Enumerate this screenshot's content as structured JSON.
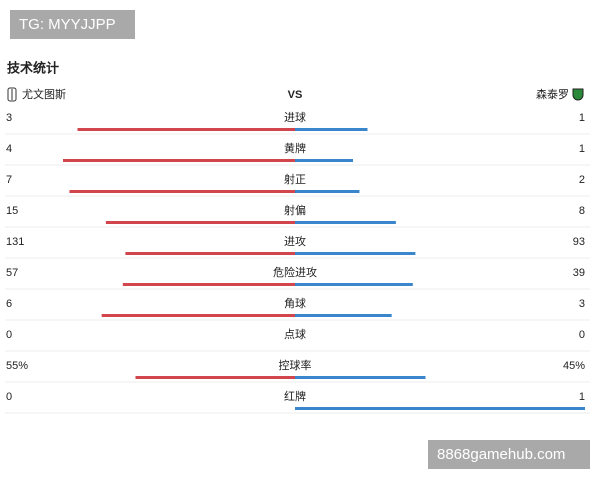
{
  "watermark_top": "TG: MYYJJPP",
  "watermark_bottom": "8868gamehub.com",
  "title": "技术统计",
  "home_team": "尤文图斯",
  "vs": "VS",
  "away_team": "森泰罗",
  "home_color": "#d2454d",
  "away_color": "#3a86cc",
  "rows": [
    {
      "name": "进球",
      "home": 3,
      "away": 1
    },
    {
      "name": "黄牌",
      "home": 4,
      "away": 1
    },
    {
      "name": "射正",
      "home": 7,
      "away": 2
    },
    {
      "name": "射偏",
      "home": 15,
      "away": 8
    },
    {
      "name": "进攻",
      "home": 131,
      "away": 93
    },
    {
      "name": "危险进攻",
      "home": 57,
      "away": 39
    },
    {
      "name": "角球",
      "home": 6,
      "away": 3
    },
    {
      "name": "点球",
      "home": 0,
      "away": 0
    },
    {
      "name": "控球率",
      "home": 55,
      "away": 45,
      "home_label": "55%",
      "away_label": "45%"
    },
    {
      "name": "红牌",
      "home": 0,
      "away": 1
    }
  ]
}
